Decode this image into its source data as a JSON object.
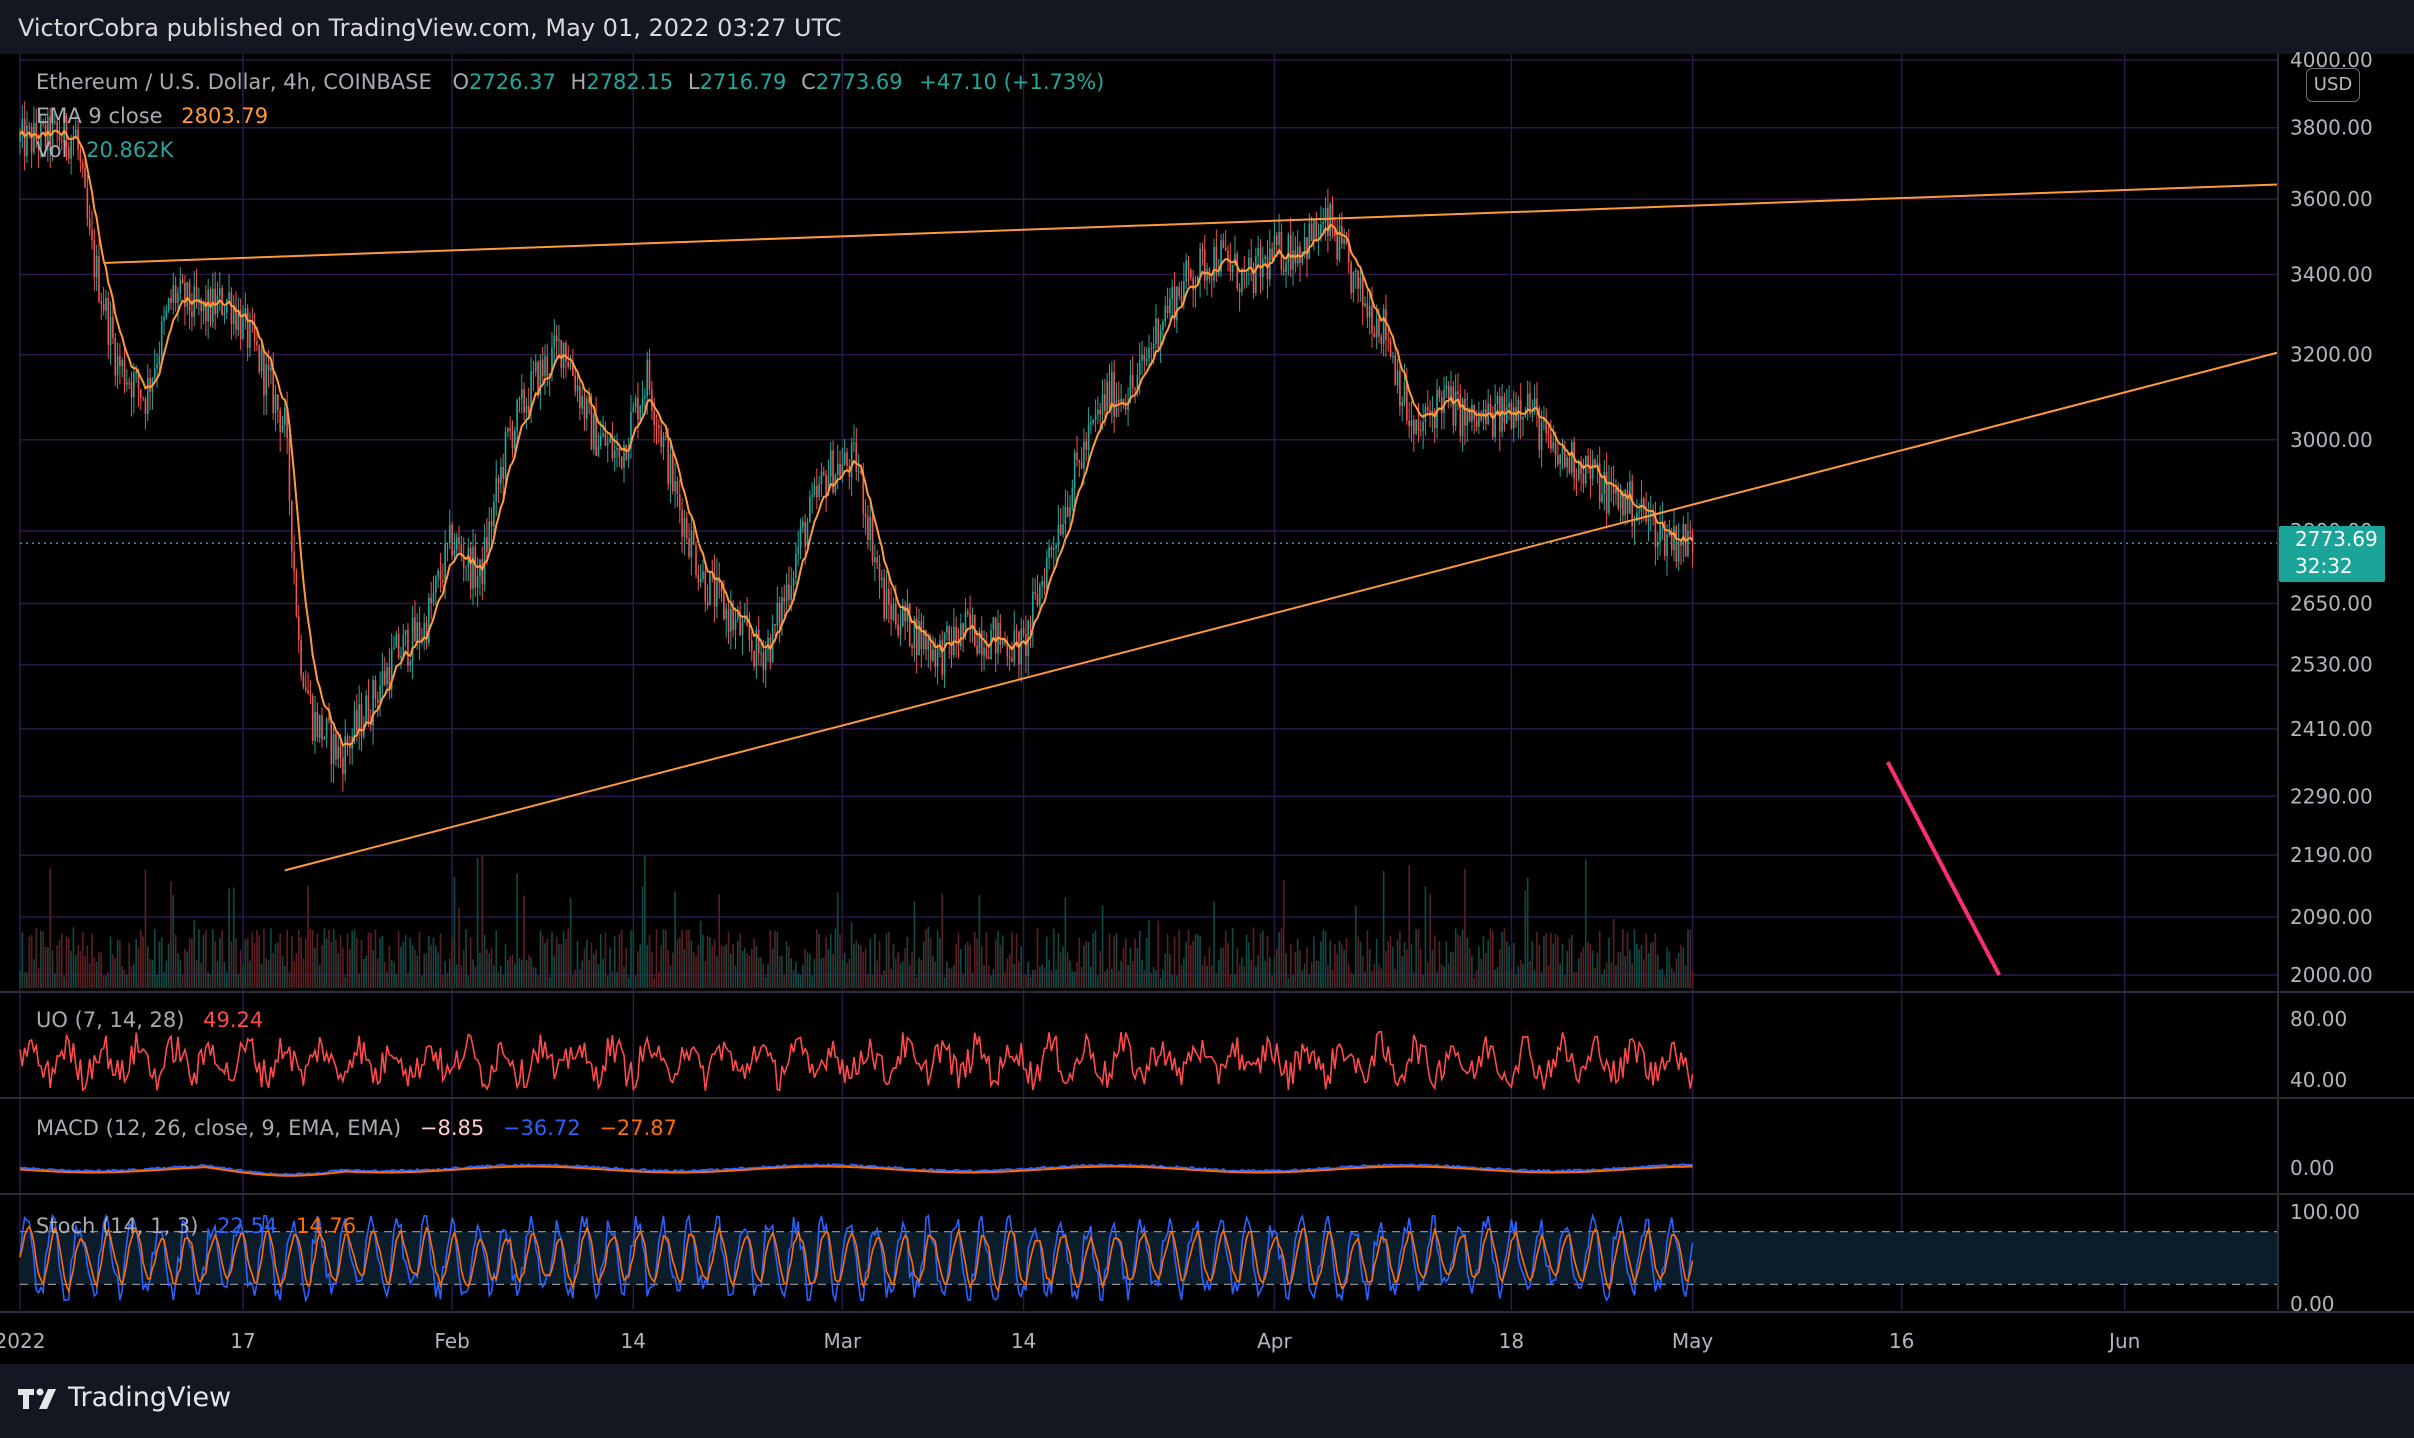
{
  "header": {
    "publisher": "VictorCobra published on TradingView.com, May 01, 2022 03:27 UTC"
  },
  "footer": {
    "brand": "TradingView"
  },
  "colors": {
    "up": "#26a69a",
    "down": "#ef5350",
    "ema": "#ff9a3c",
    "trendline": "#ff9a3c",
    "arrow": "#ff2e72",
    "grid": "#2a1a4a",
    "uo": "#ff4a4a",
    "macd_line": "#2962ff",
    "signal": "#ff6d00",
    "stoch_k": "#2962ff",
    "stoch_d": "#ff6d00"
  },
  "main_legend": {
    "symbol": "Ethereum / U.S. Dollar, 4h, COINBASE",
    "open_label": "O",
    "open": "2726.37",
    "high_label": "H",
    "high": "2782.15",
    "low_label": "L",
    "low": "2716.79",
    "close_label": "C",
    "close": "2773.69",
    "change": "+47.10 (+1.73%)",
    "ema_label": "EMA 9 close",
    "ema_value": "2803.79",
    "vol_label": "Vol",
    "vol_value": "20.862K"
  },
  "price_axis": {
    "currency": "USD",
    "current_price": "2773.69",
    "countdown": "32:32",
    "ticks": [
      "4000.00",
      "3800.00",
      "3600.00",
      "3400.00",
      "3200.00",
      "3000.00",
      "2800.00",
      "2650.00",
      "2530.00",
      "2410.00",
      "2290.00",
      "2190.00",
      "2090.00",
      "2000.00"
    ]
  },
  "time_axis": {
    "labels": [
      "2022",
      "17",
      "Feb",
      "14",
      "Mar",
      "14",
      "Apr",
      "18",
      "May",
      "16",
      "Jun"
    ]
  },
  "indicators": {
    "uo": {
      "label": "UO (7, 14, 28)",
      "value": "49.24",
      "ticks": [
        "80.00",
        "40.00"
      ]
    },
    "macd": {
      "label": "MACD (12, 26, close, 9, EMA, EMA)",
      "hist": "−8.85",
      "macd": "−36.72",
      "signal": "−27.87",
      "ticks": [
        "0.00"
      ]
    },
    "stoch": {
      "label": "Stoch (14, 1, 3)",
      "k": "22.54",
      "d": "14.76",
      "ticks": [
        "100.00",
        "0.00"
      ]
    }
  },
  "chart_data": {
    "type": "candlestick",
    "symbol": "ETH/USD",
    "interval": "4h",
    "scale": "log",
    "ylim": [
      2000,
      4000
    ],
    "x_range": [
      "2022-01-01",
      "2022-06-12"
    ],
    "daily_close_approx": {
      "x": [
        "2022-01-01",
        "2022-01-05",
        "2022-01-06",
        "2022-01-08",
        "2022-01-10",
        "2022-01-12",
        "2022-01-14",
        "2022-01-16",
        "2022-01-18",
        "2022-01-20",
        "2022-01-21",
        "2022-01-22",
        "2022-01-24",
        "2022-01-26",
        "2022-01-28",
        "2022-01-30",
        "2022-02-01",
        "2022-02-03",
        "2022-02-05",
        "2022-02-07",
        "2022-02-09",
        "2022-02-11",
        "2022-02-13",
        "2022-02-15",
        "2022-02-17",
        "2022-02-19",
        "2022-02-21",
        "2022-02-23",
        "2022-02-24",
        "2022-02-26",
        "2022-02-28",
        "2022-03-02",
        "2022-03-04",
        "2022-03-06",
        "2022-03-08",
        "2022-03-10",
        "2022-03-12",
        "2022-03-14",
        "2022-03-16",
        "2022-03-18",
        "2022-03-20",
        "2022-03-22",
        "2022-03-24",
        "2022-03-26",
        "2022-03-28",
        "2022-03-30",
        "2022-04-01",
        "2022-04-03",
        "2022-04-05",
        "2022-04-07",
        "2022-04-09",
        "2022-04-11",
        "2022-04-13",
        "2022-04-15",
        "2022-04-17",
        "2022-04-19",
        "2022-04-21",
        "2022-04-23",
        "2022-04-25",
        "2022-04-27",
        "2022-04-29",
        "2022-05-01"
      ],
      "y": [
        3760,
        3780,
        3480,
        3180,
        3100,
        3350,
        3300,
        3340,
        3200,
        3030,
        2570,
        2430,
        2360,
        2450,
        2550,
        2600,
        2780,
        2700,
        3000,
        3140,
        3230,
        3020,
        2960,
        3150,
        2880,
        2700,
        2620,
        2550,
        2580,
        2780,
        2930,
        2950,
        2650,
        2600,
        2550,
        2600,
        2580,
        2560,
        2770,
        2950,
        3100,
        3120,
        3300,
        3400,
        3450,
        3380,
        3450,
        3480,
        3530,
        3350,
        3260,
        3000,
        3100,
        3040,
        3050,
        3100,
        2960,
        2950,
        2880,
        2850,
        2790,
        2774
      ]
    },
    "ema_period": 9,
    "annotations": [
      {
        "type": "trendline",
        "from": {
          "x": "2022-01-07",
          "y": 3430
        },
        "to": {
          "x": "2022-06-12",
          "y": 3640
        }
      },
      {
        "type": "trendline",
        "from": {
          "x": "2022-01-20",
          "y": 2165
        },
        "to": {
          "x": "2022-06-12",
          "y": 3205
        }
      },
      {
        "type": "arrow",
        "from": {
          "x": "2022-05-15",
          "y": 2350
        },
        "to": {
          "x": "2022-05-23",
          "y": 2000
        }
      }
    ]
  }
}
